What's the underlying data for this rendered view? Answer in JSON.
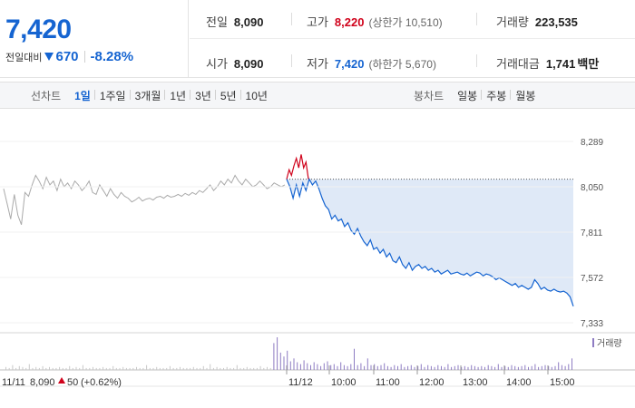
{
  "summary": {
    "price": "7,420",
    "change_label": "전일대비",
    "change_value": "670",
    "change_pct": "-8.28%",
    "stats": {
      "prev_close_label": "전일",
      "prev_close": "8,090",
      "high_label": "고가",
      "high": "8,220",
      "upper_limit": "(상한가 10,510)",
      "volume_label": "거래량",
      "volume": "223,535",
      "open_label": "시가",
      "open": "8,090",
      "low_label": "저가",
      "low": "7,420",
      "lower_limit": "(하한가 5,670)",
      "amount_label": "거래대금",
      "amount": "1,741",
      "amount_unit": "백만"
    }
  },
  "tabs": {
    "line_label": "선차트",
    "line_items": [
      "1일",
      "1주일",
      "3개월",
      "1년",
      "3년",
      "5년",
      "10년"
    ],
    "candle_label": "봉차트",
    "candle_items": [
      "일봉",
      "주봉",
      "월봉"
    ]
  },
  "colors": {
    "up": "#d0021b",
    "down": "#1564d1",
    "prev_line": "#aaaaaa",
    "fill": "#dfe9f7",
    "volume": "#8e7cc3"
  },
  "chart_data": {
    "type": "line",
    "y_ticks": [
      "8,289",
      "8,050",
      "7,811",
      "7,572",
      "7,333"
    ],
    "ylim": [
      7333,
      8289
    ],
    "prev_close": 8090,
    "x_ticks": [
      "11/12",
      "10:00",
      "11:00",
      "12:00",
      "13:00",
      "14:00",
      "15:00"
    ],
    "volume_label": "거래량",
    "footer": {
      "date": "11/11",
      "price": "8,090",
      "change": "50",
      "change_pct": "(+0.62%)"
    },
    "prev_session": [
      8040,
      7960,
      7880,
      8010,
      7900,
      7850,
      8020,
      8000,
      8060,
      8110,
      8080,
      8040,
      8100,
      8060,
      8080,
      8030,
      8090,
      8050,
      8070,
      8040,
      8080,
      8060,
      8030,
      8050,
      8080,
      8020,
      8010,
      8060,
      8030,
      8000,
      8040,
      8010,
      7990,
      8020,
      8000,
      7990,
      7970,
      7980,
      7995,
      7975,
      7985,
      7990,
      7980,
      7995,
      8000,
      7990,
      8005,
      7995,
      8000,
      8010,
      8000,
      8015,
      8005,
      8020,
      8010,
      8030,
      8020,
      8040,
      8060,
      8030,
      8050,
      8080,
      8060,
      8090,
      8070,
      8110,
      8080,
      8060,
      8090,
      8070,
      8050,
      8060,
      8080,
      8060,
      8040,
      8050,
      8070,
      8060,
      8050,
      8060
    ],
    "today_up": [
      8090,
      8140,
      8110,
      8160,
      8200,
      8150,
      8220,
      8150,
      8180,
      8090
    ],
    "today": [
      8090,
      8050,
      7990,
      8060,
      8000,
      8070,
      8030,
      8090,
      8060,
      8080,
      8040,
      7990,
      7950,
      7930,
      7880,
      7900,
      7870,
      7880,
      7840,
      7860,
      7820,
      7800,
      7830,
      7790,
      7760,
      7740,
      7770,
      7720,
      7730,
      7700,
      7720,
      7680,
      7700,
      7660,
      7650,
      7680,
      7640,
      7620,
      7650,
      7610,
      7630,
      7640,
      7620,
      7630,
      7610,
      7620,
      7600,
      7610,
      7590,
      7600,
      7610,
      7590,
      7595,
      7600,
      7590,
      7585,
      7595,
      7580,
      7590,
      7600,
      7595,
      7580,
      7590,
      7585,
      7575,
      7560,
      7570,
      7560,
      7550,
      7540,
      7530,
      7540,
      7520,
      7530,
      7520,
      7510,
      7520,
      7560,
      7540,
      7510,
      7520,
      7505,
      7500,
      7510,
      7500,
      7495,
      7500,
      7490,
      7470,
      7420
    ],
    "volume": [
      3,
      2,
      5,
      2,
      4,
      3,
      2,
      6,
      2,
      3,
      2,
      4,
      2,
      3,
      2,
      2,
      3,
      2,
      2,
      4,
      2,
      3,
      2,
      5,
      2,
      2,
      3,
      2,
      2,
      3,
      2,
      2,
      4,
      2,
      2,
      3,
      2,
      2,
      2,
      3,
      2,
      2,
      5,
      2,
      2,
      3,
      2,
      2,
      2,
      4,
      2,
      2,
      3,
      2,
      2,
      2,
      3,
      2,
      2,
      4,
      2,
      6,
      2,
      3,
      2,
      2,
      3,
      2,
      2,
      5,
      2,
      2,
      3,
      2,
      2,
      2,
      4,
      2,
      3,
      2,
      28,
      34,
      18,
      14,
      20,
      9,
      12,
      8,
      6,
      10,
      7,
      5,
      8,
      6,
      4,
      7,
      9,
      5,
      6,
      4,
      8,
      5,
      4,
      6,
      22,
      5,
      7,
      4,
      12,
      5,
      6,
      4,
      5,
      7,
      4,
      3,
      5,
      4,
      6,
      3,
      4,
      5,
      3,
      4,
      6,
      3,
      5,
      4,
      3,
      5,
      4,
      3,
      6,
      3,
      4,
      5,
      3,
      4,
      3,
      5,
      4,
      3,
      4,
      3,
      5,
      4,
      3,
      6,
      3,
      4,
      3,
      5,
      4,
      3,
      4,
      5,
      3,
      4,
      6,
      3,
      4,
      5,
      4,
      3,
      4,
      8,
      5,
      4,
      6,
      12
    ]
  }
}
